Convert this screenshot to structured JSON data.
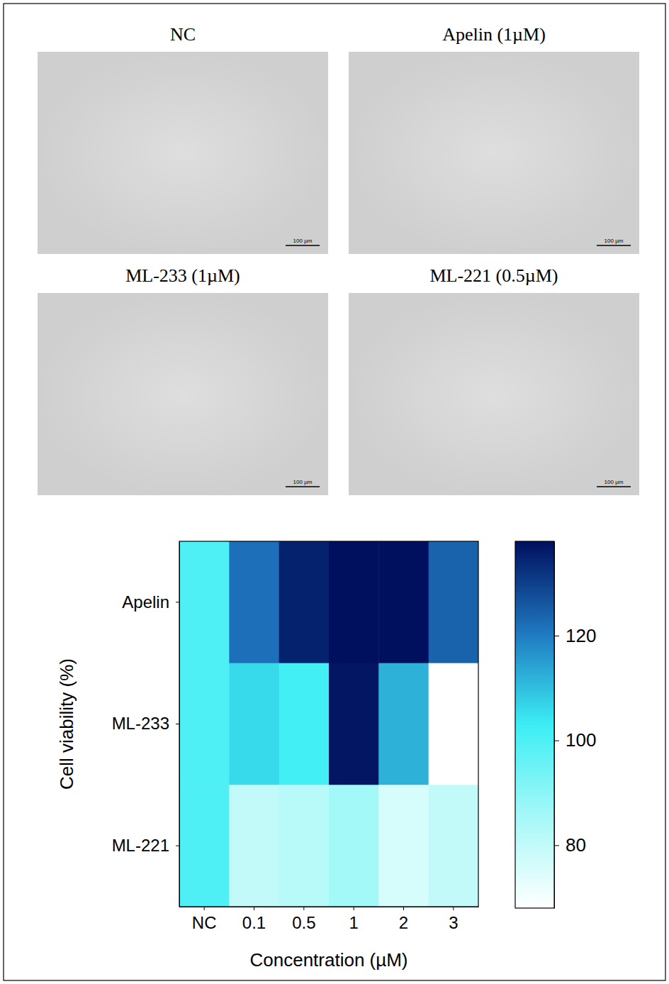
{
  "images": [
    {
      "title": "NC",
      "scale_bar": "100 µm"
    },
    {
      "title": "Apelin (1µM)",
      "scale_bar": "100 µm"
    },
    {
      "title": "ML-233 (1µM)",
      "scale_bar": "100 µm"
    },
    {
      "title": "ML-221 (0.5µM)",
      "scale_bar": "100 µm"
    }
  ],
  "chart_data": {
    "type": "heatmap",
    "x_label": "Concentration (µM)",
    "y_label": "Cell viability (%)",
    "categories": [
      "NC",
      "0.1",
      "0.5",
      "1",
      "2",
      "3"
    ],
    "rows": [
      "Apelin",
      "ML-233",
      "ML-221"
    ],
    "values": [
      [
        100,
        122,
        135,
        138,
        138,
        124
      ],
      [
        100,
        106,
        102,
        137,
        112,
        68
      ],
      [
        100,
        80,
        82,
        86,
        76,
        80
      ]
    ],
    "colorbar": {
      "range": [
        68,
        138
      ],
      "ticks": [
        80,
        100,
        120
      ]
    }
  }
}
